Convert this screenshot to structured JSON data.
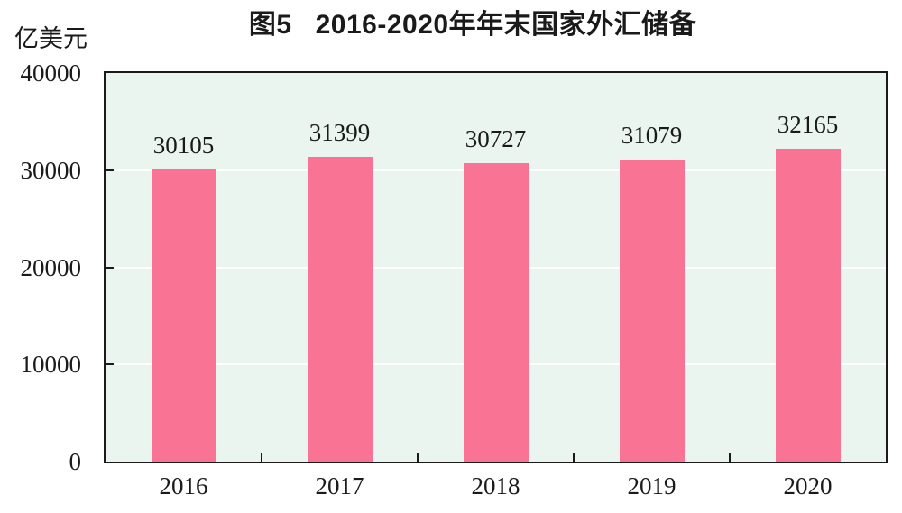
{
  "chart_data": {
    "type": "bar",
    "title": "图5　2016-2020年年末国家外汇储备",
    "title_prefix": "图5",
    "title_text": "2016-2020年年末国家外汇储备",
    "unit_label": "亿美元",
    "categories": [
      "2016",
      "2017",
      "2018",
      "2019",
      "2020"
    ],
    "values": [
      30105,
      31399,
      30727,
      31079,
      32165
    ],
    "data_labels": [
      "30105",
      "31399",
      "30727",
      "31079",
      "32165"
    ],
    "xlabel": "",
    "ylabel": "亿美元",
    "ylim": [
      0,
      40000
    ],
    "y_ticks": [
      0,
      10000,
      20000,
      30000,
      40000
    ],
    "y_tick_labels": [
      "0",
      "10000",
      "20000",
      "30000",
      "40000"
    ],
    "grid": "horizontal gridlines at 10000, 20000, 30000 (white, behind bars)",
    "legend": "none",
    "colors": {
      "bar": "#F97394",
      "plot_background": "#EAF5F0",
      "gridline": "#FFFFFF",
      "axis": "#1A1A1A",
      "text": "#1A1A1A",
      "page_background": "#FFFFFF"
    }
  }
}
